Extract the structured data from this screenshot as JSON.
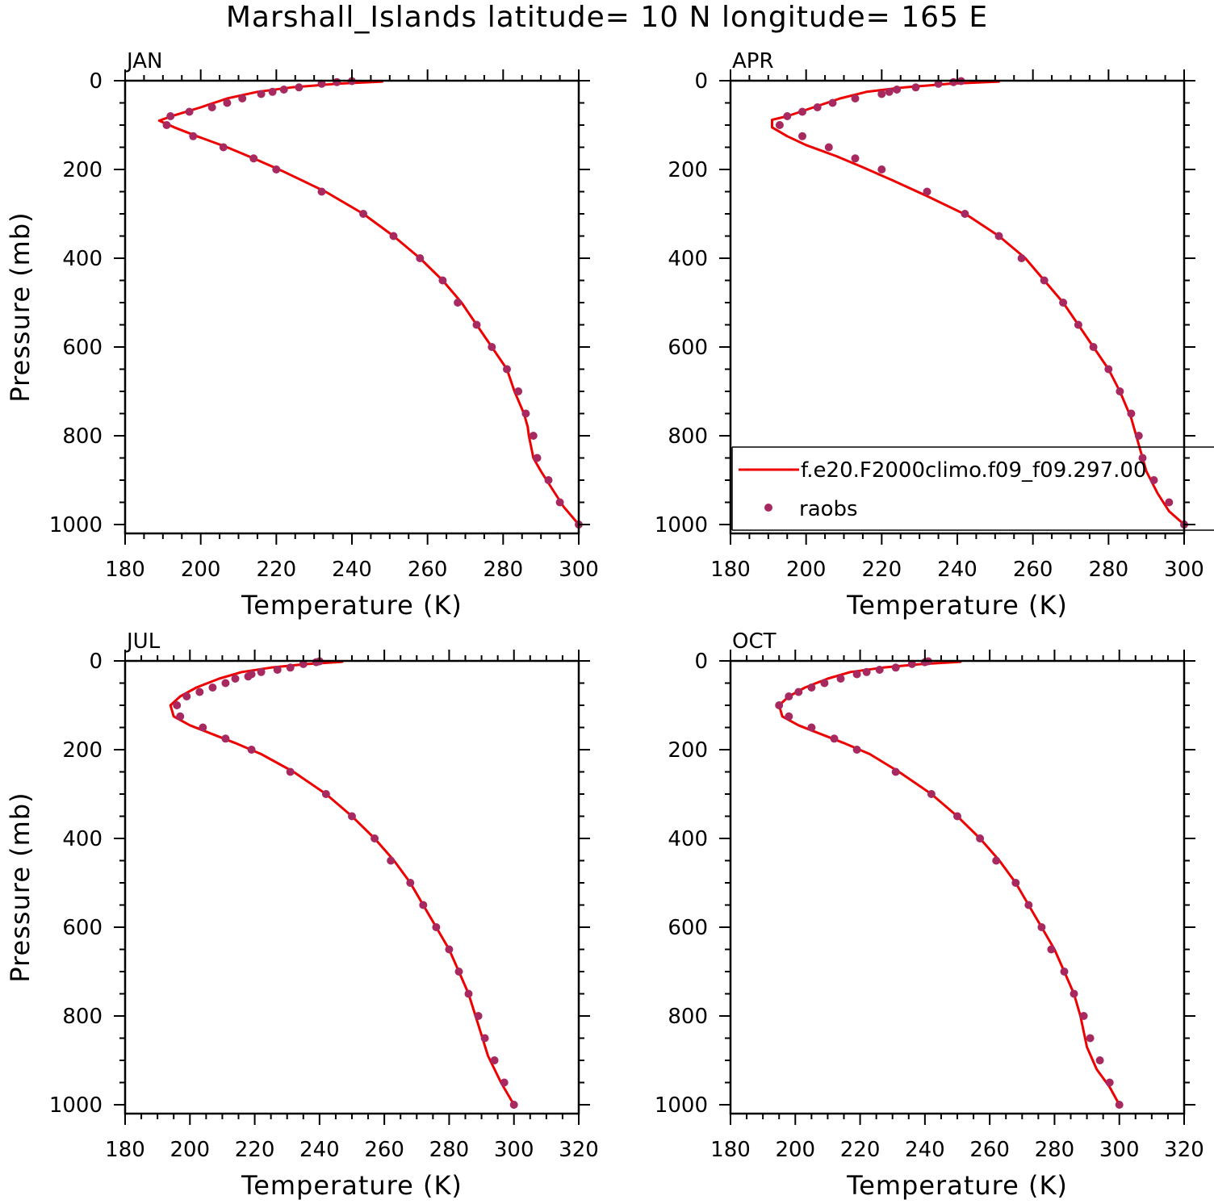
{
  "title": "Marshall_Islands  latitude= 10 N longitude= 165 E",
  "colors": {
    "model": "#ee0000",
    "obs": "#a82860",
    "axis": "#000000"
  },
  "legend": {
    "model_label": "f.e20.F2000climo.f09_f09.297.00",
    "obs_label": "raobs",
    "placement": "lower-right of APR panel"
  },
  "chart_data": [
    {
      "type": "line",
      "panel": "JAN",
      "xlabel": "Temperature (K)",
      "ylabel": "Pressure (mb)",
      "xlim": [
        180,
        300
      ],
      "ylim": [
        1020,
        0
      ],
      "xticks": [
        180,
        200,
        220,
        240,
        260,
        280,
        300
      ],
      "yticks": [
        0,
        200,
        400,
        600,
        800,
        1000
      ],
      "grid": false,
      "series": [
        {
          "name": "f.e20.F2000climo.f09_f09.297.00",
          "kind": "line",
          "x": [
            248,
            236,
            224,
            215,
            207,
            200,
            193,
            189,
            193,
            199,
            207,
            214,
            222,
            233,
            243,
            251,
            258,
            264,
            269,
            273,
            277,
            281,
            283,
            285.5,
            286.5,
            286.8,
            288,
            290,
            293,
            296,
            300
          ],
          "y": [
            2,
            7,
            15,
            25,
            40,
            60,
            78,
            90,
            105,
            125,
            150,
            175,
            205,
            250,
            300,
            350,
            400,
            450,
            500,
            550,
            600,
            650,
            700,
            750,
            780,
            800,
            850,
            880,
            920,
            960,
            1000
          ]
        },
        {
          "name": "raobs",
          "kind": "markers",
          "x": [
            240,
            236,
            232,
            226,
            222,
            219,
            216,
            211,
            207,
            203,
            197,
            192,
            191,
            198,
            206,
            214,
            220,
            232,
            243,
            251,
            258,
            264,
            268,
            273,
            277,
            281,
            284,
            286,
            288,
            289,
            292,
            295,
            300
          ],
          "y": [
            1,
            3,
            7,
            15,
            20,
            25,
            30,
            40,
            50,
            60,
            70,
            80,
            100,
            125,
            150,
            175,
            200,
            250,
            300,
            350,
            400,
            450,
            500,
            550,
            600,
            650,
            700,
            750,
            800,
            850,
            900,
            950,
            1000
          ]
        }
      ]
    },
    {
      "type": "line",
      "panel": "APR",
      "xlabel": "Temperature (K)",
      "ylabel": "",
      "xlim": [
        180,
        300
      ],
      "ylim": [
        1020,
        0
      ],
      "xticks": [
        180,
        200,
        220,
        240,
        260,
        280,
        300
      ],
      "yticks": [
        0,
        200,
        400,
        600,
        800,
        1000
      ],
      "grid": false,
      "series": [
        {
          "name": "f.e20.F2000climo.f09_f09.297.00",
          "kind": "line",
          "x": [
            251,
            238,
            226,
            216,
            209,
            202,
            195,
            191,
            191,
            195,
            200,
            208,
            215,
            223,
            232,
            243,
            251,
            258,
            263,
            268,
            272,
            276,
            280,
            283,
            286,
            288,
            290,
            293,
            296,
            300
          ],
          "y": [
            2,
            7,
            15,
            25,
            40,
            60,
            80,
            88,
            105,
            125,
            145,
            170,
            195,
            225,
            260,
            305,
            350,
            400,
            450,
            500,
            550,
            600,
            650,
            700,
            760,
            820,
            880,
            930,
            970,
            1000
          ]
        },
        {
          "name": "raobs",
          "kind": "markers",
          "x": [
            241,
            239,
            235,
            229,
            224,
            222,
            220,
            213,
            207,
            203,
            199,
            195,
            193,
            199,
            206,
            213,
            220,
            232,
            242,
            251,
            257,
            263,
            268,
            272,
            276,
            280,
            283,
            286,
            288,
            289,
            292,
            296,
            300
          ],
          "y": [
            1,
            3,
            7,
            15,
            20,
            25,
            30,
            40,
            50,
            60,
            70,
            80,
            100,
            125,
            150,
            175,
            200,
            250,
            300,
            350,
            400,
            450,
            500,
            550,
            600,
            650,
            700,
            750,
            800,
            850,
            900,
            950,
            1000
          ]
        }
      ]
    },
    {
      "type": "line",
      "panel": "JUL",
      "xlabel": "Temperature (K)",
      "ylabel": "Pressure (mb)",
      "xlim": [
        180,
        320
      ],
      "ylim": [
        1020,
        0
      ],
      "xticks": [
        180,
        200,
        220,
        240,
        260,
        280,
        300,
        320
      ],
      "yticks": [
        0,
        200,
        400,
        600,
        800,
        1000
      ],
      "grid": false,
      "series": [
        {
          "name": "f.e20.F2000climo.f09_f09.297.00",
          "kind": "line",
          "x": [
            247,
            236,
            225,
            216,
            209,
            202,
            197,
            194,
            195,
            200,
            207,
            214,
            222,
            232,
            242,
            250,
            257,
            263,
            268,
            272,
            276,
            280,
            283,
            286,
            289,
            292,
            296,
            300
          ],
          "y": [
            2,
            7,
            15,
            25,
            40,
            60,
            80,
            100,
            125,
            145,
            165,
            185,
            210,
            250,
            300,
            350,
            400,
            450,
            500,
            550,
            600,
            650,
            700,
            750,
            820,
            890,
            950,
            1000
          ]
        },
        {
          "name": "raobs",
          "kind": "markers",
          "x": [
            240,
            239,
            235,
            231,
            227,
            222,
            219,
            218,
            214,
            211,
            207,
            203,
            199,
            196,
            197,
            204,
            211,
            219,
            231,
            242,
            250,
            257,
            262,
            268,
            272,
            276,
            280,
            283,
            286,
            289,
            291,
            294,
            297,
            300
          ],
          "y": [
            1,
            3,
            7,
            15,
            20,
            25,
            30,
            35,
            40,
            50,
            60,
            70,
            80,
            100,
            125,
            150,
            175,
            200,
            250,
            300,
            350,
            400,
            450,
            500,
            550,
            600,
            650,
            700,
            750,
            800,
            850,
            900,
            950,
            1000
          ]
        }
      ]
    },
    {
      "type": "line",
      "panel": "OCT",
      "xlabel": "Temperature (K)",
      "ylabel": "",
      "xlim": [
        180,
        320
      ],
      "ylim": [
        1020,
        0
      ],
      "xticks": [
        180,
        200,
        220,
        240,
        260,
        280,
        300,
        320
      ],
      "yticks": [
        0,
        200,
        400,
        600,
        800,
        1000
      ],
      "grid": false,
      "series": [
        {
          "name": "f.e20.F2000climo.f09_f09.297.00",
          "kind": "line",
          "x": [
            251,
            239,
            227,
            217,
            210,
            203,
            198,
            195,
            196,
            201,
            208,
            215,
            223,
            232,
            242,
            250,
            257,
            263,
            268,
            272,
            276,
            280,
            283,
            286,
            288,
            290,
            293,
            297,
            300
          ],
          "y": [
            2,
            7,
            15,
            25,
            40,
            60,
            80,
            100,
            125,
            145,
            165,
            185,
            210,
            250,
            300,
            350,
            400,
            450,
            500,
            550,
            600,
            650,
            700,
            750,
            800,
            870,
            920,
            960,
            1000
          ]
        },
        {
          "name": "raobs",
          "kind": "markers",
          "x": [
            241,
            240,
            236,
            231,
            226,
            222,
            219,
            214,
            209,
            205,
            201,
            198,
            195,
            198,
            205,
            212,
            219,
            231,
            242,
            250,
            257,
            262,
            268,
            272,
            276,
            279,
            283,
            286,
            289,
            291,
            294,
            297,
            300
          ],
          "y": [
            1,
            3,
            7,
            15,
            20,
            25,
            30,
            40,
            50,
            60,
            70,
            80,
            100,
            125,
            150,
            175,
            200,
            250,
            300,
            350,
            400,
            450,
            500,
            550,
            600,
            650,
            700,
            750,
            800,
            850,
            900,
            950,
            1000
          ]
        }
      ]
    }
  ]
}
